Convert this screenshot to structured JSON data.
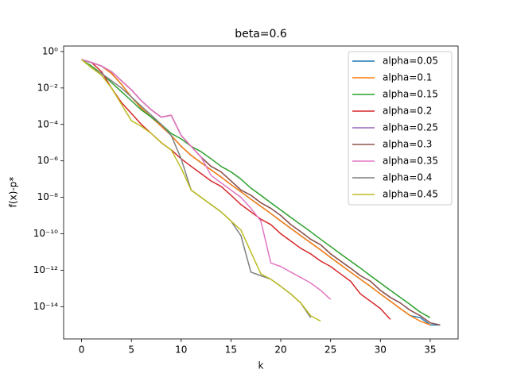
{
  "chart_data": {
    "type": "line",
    "title": "beta=0.6",
    "xlabel": "k",
    "ylabel": "f(x)-p*",
    "yscale": "log",
    "legend": "upper right",
    "x": [
      0,
      1,
      2,
      3,
      4,
      5,
      6,
      7,
      8,
      9,
      10,
      11,
      12,
      13,
      14,
      15,
      16,
      17,
      18,
      19,
      20,
      21,
      22,
      23,
      24,
      25,
      26,
      27,
      28,
      29,
      30,
      31,
      32,
      33,
      34,
      35,
      36
    ],
    "xlim": [
      -1.8,
      37.8
    ],
    "xticks": [
      0,
      5,
      10,
      15,
      20,
      25,
      30,
      35
    ],
    "ylim": [
      1.7e-16,
      2.0
    ],
    "yticks": [
      {
        "value": 1,
        "label": "10⁰"
      },
      {
        "value": 0.01,
        "label": "10⁻²"
      },
      {
        "value": 0.0001,
        "label": "10⁻⁴"
      },
      {
        "value": 1e-06,
        "label": "10⁻⁶"
      },
      {
        "value": 1e-08,
        "label": "10⁻⁸"
      },
      {
        "value": 1e-10,
        "label": "10⁻¹⁰"
      },
      {
        "value": 1e-12,
        "label": "10⁻¹²"
      },
      {
        "value": 1e-14,
        "label": "10⁻¹⁴"
      }
    ],
    "series": [
      {
        "name": "alpha=0.05",
        "color": "#1f77b4",
        "values": [
          0.36,
          0.25,
          0.16,
          0.063,
          0.016,
          0.0032,
          0.00079,
          0.00025,
          7.9e-05,
          2.5e-05,
          6.3e-06,
          2e-06,
          7.9e-07,
          3.2e-07,
          1.3e-07,
          5e-08,
          2e-08,
          7.9e-09,
          3.2e-09,
          1.3e-09,
          5e-10,
          2e-10,
          7.9e-11,
          3.2e-11,
          1.3e-11,
          5e-12,
          2e-12,
          7.9e-13,
          3.2e-13,
          1.3e-13,
          5e-14,
          2e-14,
          7.9e-15,
          3.2e-15,
          2.5e-15,
          1e-15,
          1e-15
        ]
      },
      {
        "name": "alpha=0.1",
        "color": "#ff7f0e",
        "values": [
          0.36,
          0.25,
          0.16,
          0.063,
          0.016,
          0.0032,
          0.00079,
          0.00025,
          7.9e-05,
          2.5e-05,
          6.3e-06,
          2e-06,
          7.9e-07,
          3.2e-07,
          1.3e-07,
          5e-08,
          2e-08,
          7.9e-09,
          3.2e-09,
          1.3e-09,
          5e-10,
          2e-10,
          7.9e-11,
          3.2e-11,
          1.3e-11,
          5e-12,
          2e-12,
          7.9e-13,
          3.2e-13,
          1.3e-13,
          5e-14,
          2e-14,
          7.9e-15,
          3.2e-15,
          1.6e-15,
          1e-15,
          null
        ]
      },
      {
        "name": "alpha=0.15",
        "color": "#2ca02c",
        "values": [
          0.36,
          0.16,
          0.063,
          0.02,
          0.0063,
          0.002,
          0.00063,
          0.00025,
          0.0001,
          3.2e-05,
          1.6e-05,
          6.3e-06,
          3.2e-06,
          1.3e-06,
          5e-07,
          2.5e-07,
          1e-07,
          3.2e-08,
          1.3e-08,
          5e-09,
          2e-09,
          7.9e-10,
          3.2e-10,
          1.3e-10,
          5e-11,
          2e-11,
          7.9e-12,
          3.2e-12,
          1.3e-12,
          5e-13,
          2e-13,
          7.9e-14,
          3.2e-14,
          1.3e-14,
          5e-15,
          2.5e-15,
          null
        ]
      },
      {
        "name": "alpha=0.2",
        "color": "#d62728",
        "values": [
          0.36,
          0.25,
          0.079,
          0.01,
          0.0016,
          0.0004,
          0.0001,
          3.2e-05,
          1e-05,
          4e-06,
          1.3e-06,
          5e-07,
          2e-07,
          7.9e-08,
          4e-08,
          1.3e-08,
          4e-09,
          1.6e-09,
          6.3e-10,
          3.2e-10,
          1e-10,
          4e-11,
          1.6e-11,
          7.9e-12,
          3.2e-12,
          1.6e-12,
          6.3e-13,
          2.5e-13,
          5e-14,
          2e-14,
          7.9e-15,
          2e-15,
          null,
          null,
          null,
          null,
          null
        ]
      },
      {
        "name": "alpha=0.25",
        "color": "#9467bd",
        "values": [
          0.36,
          0.25,
          0.16,
          0.079,
          0.025,
          0.0079,
          0.002,
          0.00063,
          0.00025,
          0.00032,
          2.5e-05,
          6.3e-06,
          1.6e-06,
          5e-07,
          2.5e-07,
          7.9e-08,
          2.5e-08,
          1.3e-08,
          5e-09,
          2.5e-09,
          1e-09,
          3.2e-10,
          1.3e-10,
          5e-11,
          2.5e-11,
          7.9e-12,
          3.2e-12,
          1.3e-12,
          5e-13,
          2.5e-13,
          7.9e-14,
          3.2e-14,
          1.6e-14,
          6.3e-15,
          3.2e-15,
          1.3e-15,
          null
        ]
      },
      {
        "name": "alpha=0.3",
        "color": "#8c564b",
        "values": [
          0.36,
          0.25,
          0.16,
          0.079,
          0.025,
          0.0079,
          0.002,
          0.00063,
          0.00025,
          0.00032,
          2.5e-05,
          6.3e-06,
          1.6e-06,
          5e-07,
          2.5e-07,
          7.9e-08,
          2.5e-08,
          1.3e-08,
          5e-09,
          2.5e-09,
          1e-09,
          3.2e-10,
          1.3e-10,
          5e-11,
          2.5e-11,
          7.9e-12,
          3.2e-12,
          1.3e-12,
          5e-13,
          2.5e-13,
          7.9e-14,
          3.2e-14,
          1.6e-14,
          6.3e-15,
          3.2e-15,
          1.3e-15,
          1e-15
        ]
      },
      {
        "name": "alpha=0.35",
        "color": "#e377c2",
        "values": [
          0.36,
          0.25,
          0.16,
          0.079,
          0.025,
          0.0079,
          0.002,
          0.00063,
          0.00025,
          0.00032,
          2.5e-05,
          6.3e-06,
          1.6e-06,
          1.6e-07,
          6.3e-08,
          2.5e-08,
          1e-08,
          2.5e-09,
          5e-10,
          2.5e-12,
          1.6e-12,
          7.9e-13,
          4e-13,
          2e-13,
          7.9e-14,
          2.5e-14,
          null,
          null,
          null,
          null,
          null,
          null,
          null,
          null,
          null,
          null,
          null
        ]
      },
      {
        "name": "alpha=0.4",
        "color": "#7f7f7f",
        "values": [
          0.36,
          0.13,
          0.063,
          0.025,
          0.01,
          0.0032,
          0.001,
          0.00032,
          0.0001,
          2.5e-05,
          1.3e-06,
          2.5e-08,
          1e-08,
          4e-09,
          1.6e-09,
          5e-10,
          7.9e-11,
          7.9e-13,
          5e-13,
          3.2e-13,
          1.3e-13,
          5e-14,
          1.6e-14,
          2.5e-15,
          null,
          null,
          null,
          null,
          null,
          null,
          null,
          null,
          null,
          null,
          null,
          null,
          null
        ]
      },
      {
        "name": "alpha=0.45",
        "color": "#bcbd22",
        "values": [
          0.36,
          0.13,
          0.05,
          0.01,
          0.0013,
          0.00016,
          7.9e-05,
          3.2e-05,
          1e-05,
          4e-06,
          4e-07,
          2.5e-08,
          1e-08,
          4e-09,
          1.6e-09,
          5e-10,
          1.6e-10,
          1e-11,
          6.3e-13,
          3.2e-13,
          1.3e-13,
          5e-14,
          1.6e-14,
          3.2e-15,
          1.6e-15,
          null,
          null,
          null,
          null,
          null,
          null,
          null,
          null,
          null,
          null,
          null,
          null
        ]
      }
    ]
  }
}
